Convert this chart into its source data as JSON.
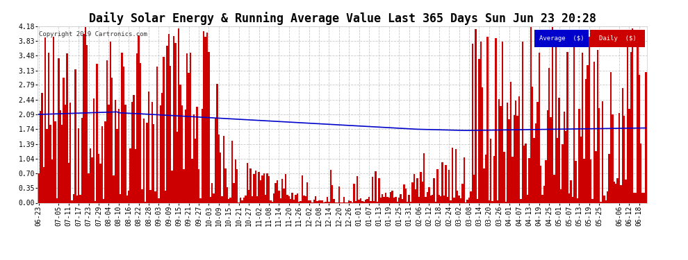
{
  "title": "Daily Solar Energy & Running Average Value Last 365 Days Sun Jun 23 20:28",
  "copyright": "Copyright 2019 Cartronics.com",
  "bar_color": "#cc0000",
  "avg_color": "#0000cc",
  "background_color": "#ffffff",
  "plot_bg_color": "#ffffff",
  "ylim": [
    0.0,
    4.18
  ],
  "yticks": [
    0.0,
    0.35,
    0.7,
    1.04,
    1.39,
    1.74,
    2.09,
    2.44,
    2.79,
    3.13,
    3.48,
    3.83,
    4.18
  ],
  "legend_avg_label": "Average  ($)",
  "legend_daily_label": "Daily  ($)",
  "legend_avg_bg": "#0000cc",
  "legend_daily_bg": "#cc0000",
  "title_fontsize": 12,
  "tick_label_fontsize": 7,
  "n_bars": 365,
  "xtick_labels": [
    "06-23",
    "07-05",
    "07-11",
    "07-17",
    "07-23",
    "07-29",
    "08-04",
    "08-10",
    "08-16",
    "08-22",
    "08-28",
    "09-03",
    "09-09",
    "09-15",
    "09-21",
    "09-27",
    "10-03",
    "10-09",
    "10-15",
    "10-21",
    "10-27",
    "11-02",
    "11-08",
    "11-14",
    "11-20",
    "11-26",
    "12-02",
    "12-08",
    "12-14",
    "12-20",
    "12-26",
    "01-01",
    "01-07",
    "01-13",
    "01-19",
    "01-25",
    "01-31",
    "02-06",
    "02-12",
    "02-18",
    "02-24",
    "03-02",
    "03-08",
    "03-14",
    "03-20",
    "03-26",
    "04-01",
    "04-07",
    "04-13",
    "04-19",
    "04-25",
    "05-01",
    "05-07",
    "05-13",
    "05-19",
    "05-25",
    "06-06",
    "06-12",
    "06-18"
  ],
  "xtick_positions": [
    0,
    12,
    18,
    24,
    30,
    36,
    42,
    48,
    54,
    60,
    66,
    72,
    78,
    84,
    90,
    96,
    102,
    108,
    114,
    120,
    126,
    132,
    138,
    144,
    150,
    156,
    162,
    168,
    174,
    180,
    186,
    192,
    198,
    204,
    210,
    216,
    222,
    228,
    234,
    240,
    246,
    252,
    258,
    264,
    270,
    276,
    282,
    288,
    294,
    300,
    306,
    312,
    318,
    324,
    330,
    336,
    348,
    354,
    360
  ]
}
